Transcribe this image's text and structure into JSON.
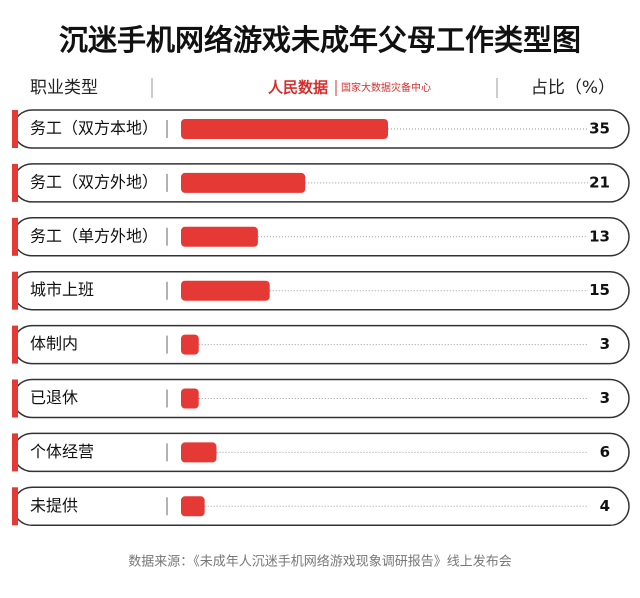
{
  "chart_data": {
    "type": "bar",
    "title": "沉迷手机网络游戏未成年父母工作类型图",
    "category_header": "职业类型",
    "value_header": "占比（%）",
    "logo": "人民数据",
    "logo_subtitle": "国家大数据灾备中心",
    "source": "数据来源：《未成年人沉迷手机网络游戏现象调研报告》线上发布会",
    "categories": [
      "务工（双方本地）",
      "务工（双方外地）",
      "务工（单方外地）",
      "城市上班",
      "体制内",
      "已退休",
      "个体经营",
      "未提供"
    ],
    "values": [
      35,
      21,
      13,
      15,
      3,
      3,
      6,
      4
    ],
    "color": "#e53935"
  }
}
